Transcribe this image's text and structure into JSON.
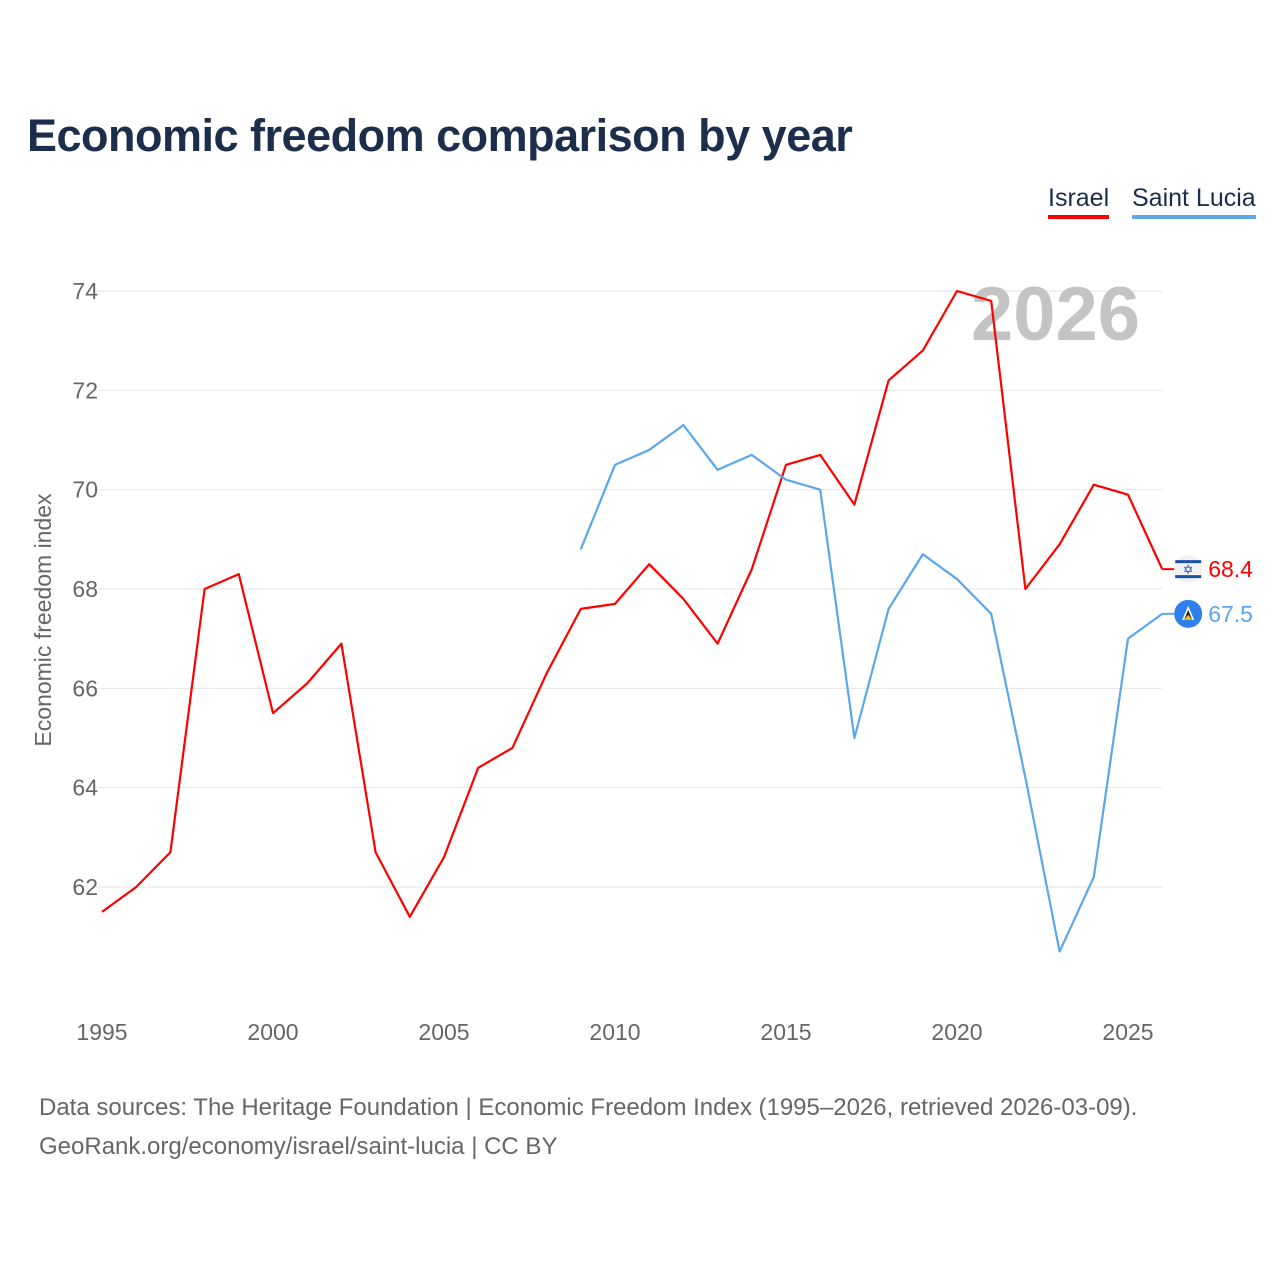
{
  "chart_data": {
    "type": "line",
    "title": "Economic freedom comparison by year",
    "xlabel": "",
    "ylabel": "Economic freedom index",
    "ylim": [
      60,
      75
    ],
    "xlim": [
      1995,
      2026
    ],
    "y_ticks": [
      62,
      64,
      66,
      68,
      70,
      72,
      74
    ],
    "x_ticks": [
      1995,
      2000,
      2005,
      2010,
      2015,
      2020,
      2025
    ],
    "grid": true,
    "legend_position": "top-right",
    "year_watermark": "2026",
    "series": [
      {
        "name": "Israel",
        "color": "#ff0000",
        "end_label": "68.4",
        "flag": "israel-flag",
        "x": [
          1995,
          1996,
          1997,
          1998,
          1999,
          2000,
          2001,
          2002,
          2003,
          2004,
          2005,
          2006,
          2007,
          2008,
          2009,
          2010,
          2011,
          2012,
          2013,
          2014,
          2015,
          2016,
          2017,
          2018,
          2019,
          2020,
          2021,
          2022,
          2023,
          2024,
          2025,
          2026
        ],
        "values": [
          61.5,
          62.0,
          62.7,
          68.0,
          68.3,
          65.5,
          66.1,
          66.9,
          62.7,
          61.4,
          62.6,
          64.4,
          64.8,
          66.3,
          67.6,
          67.7,
          68.5,
          67.8,
          66.9,
          68.4,
          70.5,
          70.7,
          69.7,
          72.2,
          72.8,
          74.0,
          73.8,
          68.0,
          68.9,
          70.1,
          69.9,
          68.4
        ]
      },
      {
        "name": "Saint Lucia",
        "color": "#5ba7ea",
        "end_label": "67.5",
        "flag": "saint-lucia-flag",
        "x": [
          2009,
          2010,
          2011,
          2012,
          2013,
          2014,
          2015,
          2016,
          2017,
          2018,
          2019,
          2020,
          2021,
          2022,
          2023,
          2024,
          2025,
          2026
        ],
        "values": [
          68.8,
          70.5,
          70.8,
          71.3,
          70.4,
          70.7,
          70.2,
          70.0,
          65.0,
          67.6,
          68.7,
          68.2,
          67.5,
          64.2,
          60.7,
          62.2,
          67.0,
          67.5
        ]
      }
    ]
  },
  "source": {
    "line1": "Data sources: The Heritage Foundation | Economic Freedom Index (1995–2026, retrieved 2026-03-09).",
    "line2": "GeoRank.org/economy/israel/saint-lucia | CC BY"
  }
}
